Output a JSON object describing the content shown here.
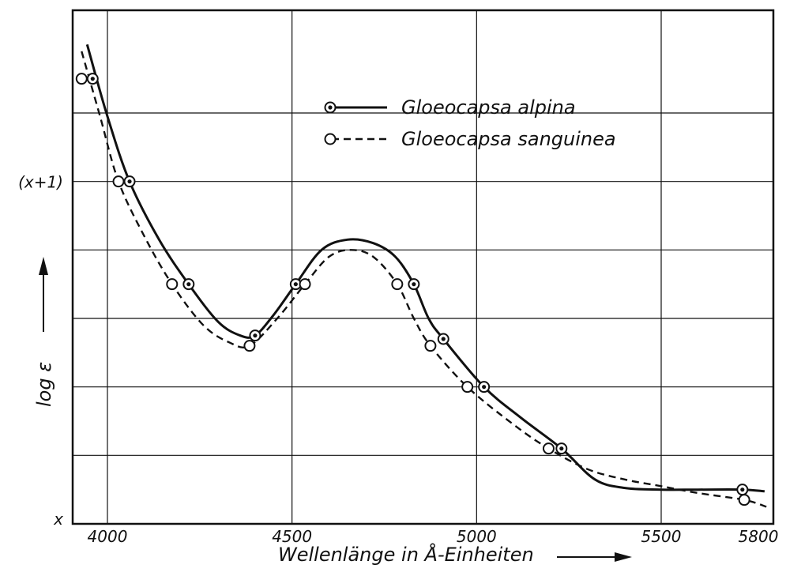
{
  "chart_data": {
    "type": "line",
    "xlabel": "Wellenlänge in Å-Einheiten",
    "ylabel": "log ε",
    "xlim": [
      3925,
      5800
    ],
    "x_ticks": [
      4000,
      4500,
      5000,
      5500,
      5800
    ],
    "y_tick_labels": [
      {
        "value": 0,
        "label": "x"
      },
      {
        "value": 1,
        "label": "(x+1)"
      }
    ],
    "ylim": [
      0,
      1.5
    ],
    "grid": true,
    "legend_position": "top-right",
    "series": [
      {
        "name": "Gloeocapsa alpina",
        "line_style": "solid",
        "marker": "dotted-circle",
        "color": "#111111",
        "points": [
          {
            "x": 3960,
            "y": 1.3
          },
          {
            "x": 4060,
            "y": 1.0
          },
          {
            "x": 4220,
            "y": 0.7
          },
          {
            "x": 4400,
            "y": 0.55
          },
          {
            "x": 4510,
            "y": 0.7
          },
          {
            "x": 4830,
            "y": 0.7
          },
          {
            "x": 4910,
            "y": 0.54
          },
          {
            "x": 5020,
            "y": 0.4
          },
          {
            "x": 5230,
            "y": 0.22
          },
          {
            "x": 5720,
            "y": 0.1
          }
        ],
        "curve": [
          {
            "x": 3945,
            "y": 1.4
          },
          {
            "x": 4000,
            "y": 1.19
          },
          {
            "x": 4060,
            "y": 1.0
          },
          {
            "x": 4140,
            "y": 0.83
          },
          {
            "x": 4220,
            "y": 0.7
          },
          {
            "x": 4300,
            "y": 0.59
          },
          {
            "x": 4360,
            "y": 0.55
          },
          {
            "x": 4400,
            "y": 0.55
          },
          {
            "x": 4450,
            "y": 0.61
          },
          {
            "x": 4510,
            "y": 0.7
          },
          {
            "x": 4580,
            "y": 0.8
          },
          {
            "x": 4650,
            "y": 0.83
          },
          {
            "x": 4720,
            "y": 0.82
          },
          {
            "x": 4780,
            "y": 0.78
          },
          {
            "x": 4830,
            "y": 0.7
          },
          {
            "x": 4870,
            "y": 0.6
          },
          {
            "x": 4910,
            "y": 0.54
          },
          {
            "x": 5020,
            "y": 0.4
          },
          {
            "x": 5120,
            "y": 0.31
          },
          {
            "x": 5230,
            "y": 0.22
          },
          {
            "x": 5320,
            "y": 0.13
          },
          {
            "x": 5400,
            "y": 0.105
          },
          {
            "x": 5500,
            "y": 0.1
          },
          {
            "x": 5600,
            "y": 0.1
          },
          {
            "x": 5720,
            "y": 0.1
          },
          {
            "x": 5780,
            "y": 0.095
          }
        ]
      },
      {
        "name": "Gloeocapsa sanguinea",
        "line_style": "dashed",
        "marker": "open-circle",
        "color": "#111111",
        "points": [
          {
            "x": 3930,
            "y": 1.3
          },
          {
            "x": 4030,
            "y": 1.0
          },
          {
            "x": 4175,
            "y": 0.7
          },
          {
            "x": 4385,
            "y": 0.52
          },
          {
            "x": 4535,
            "y": 0.7
          },
          {
            "x": 4785,
            "y": 0.7
          },
          {
            "x": 4875,
            "y": 0.52
          },
          {
            "x": 4975,
            "y": 0.4
          },
          {
            "x": 5195,
            "y": 0.22
          },
          {
            "x": 5725,
            "y": 0.07
          }
        ],
        "curve": [
          {
            "x": 3930,
            "y": 1.38
          },
          {
            "x": 3980,
            "y": 1.19
          },
          {
            "x": 4030,
            "y": 1.0
          },
          {
            "x": 4100,
            "y": 0.84
          },
          {
            "x": 4175,
            "y": 0.7
          },
          {
            "x": 4260,
            "y": 0.58
          },
          {
            "x": 4330,
            "y": 0.53
          },
          {
            "x": 4385,
            "y": 0.52
          },
          {
            "x": 4460,
            "y": 0.6
          },
          {
            "x": 4535,
            "y": 0.7
          },
          {
            "x": 4600,
            "y": 0.78
          },
          {
            "x": 4660,
            "y": 0.8
          },
          {
            "x": 4720,
            "y": 0.78
          },
          {
            "x": 4785,
            "y": 0.7
          },
          {
            "x": 4830,
            "y": 0.6
          },
          {
            "x": 4875,
            "y": 0.52
          },
          {
            "x": 4975,
            "y": 0.4
          },
          {
            "x": 5100,
            "y": 0.29
          },
          {
            "x": 5195,
            "y": 0.22
          },
          {
            "x": 5300,
            "y": 0.16
          },
          {
            "x": 5400,
            "y": 0.13
          },
          {
            "x": 5500,
            "y": 0.11
          },
          {
            "x": 5600,
            "y": 0.09
          },
          {
            "x": 5725,
            "y": 0.07
          },
          {
            "x": 5785,
            "y": 0.05
          }
        ]
      }
    ]
  }
}
